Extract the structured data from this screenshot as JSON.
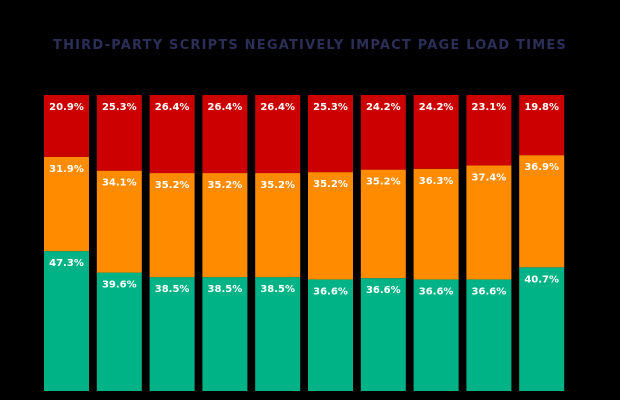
{
  "chart_data": {
    "type": "bar",
    "stacked": true,
    "normalized": true,
    "title": "THIRD-PARTY SCRIPTS NEGATIVELY IMPACT PAGE LOAD TIMES",
    "categories": [
      "",
      "",
      "",
      "",
      "",
      "",
      "",
      "",
      "",
      ""
    ],
    "series": [
      {
        "color": "#00b386",
        "values": [
          47.3,
          39.6,
          38.5,
          38.5,
          38.5,
          36.6,
          36.6,
          36.6,
          36.6,
          40.7
        ],
        "labels": [
          "47.3%",
          "39.6%",
          "38.5%",
          "38.5%",
          "38.5%",
          "36.6%",
          "36.6%",
          "36.6%",
          "36.6%",
          "40.7%"
        ]
      },
      {
        "color": "#ff8c00",
        "values": [
          31.9,
          34.1,
          35.2,
          35.2,
          35.2,
          35.2,
          35.2,
          36.3,
          37.4,
          36.9
        ],
        "labels": [
          "31.9%",
          "34.1%",
          "35.2%",
          "35.2%",
          "35.2%",
          "35.2%",
          "35.2%",
          "36.3%",
          "37.4%",
          "36.9%"
        ]
      },
      {
        "color": "#cc0000",
        "values": [
          20.9,
          25.3,
          26.4,
          26.4,
          26.4,
          25.3,
          24.2,
          24.2,
          23.1,
          19.8
        ],
        "labels": [
          "20.9%",
          "25.3%",
          "26.4%",
          "26.4%",
          "26.4%",
          "25.3%",
          "24.2%",
          "24.2%",
          "23.1%",
          "19.8%"
        ]
      }
    ]
  }
}
